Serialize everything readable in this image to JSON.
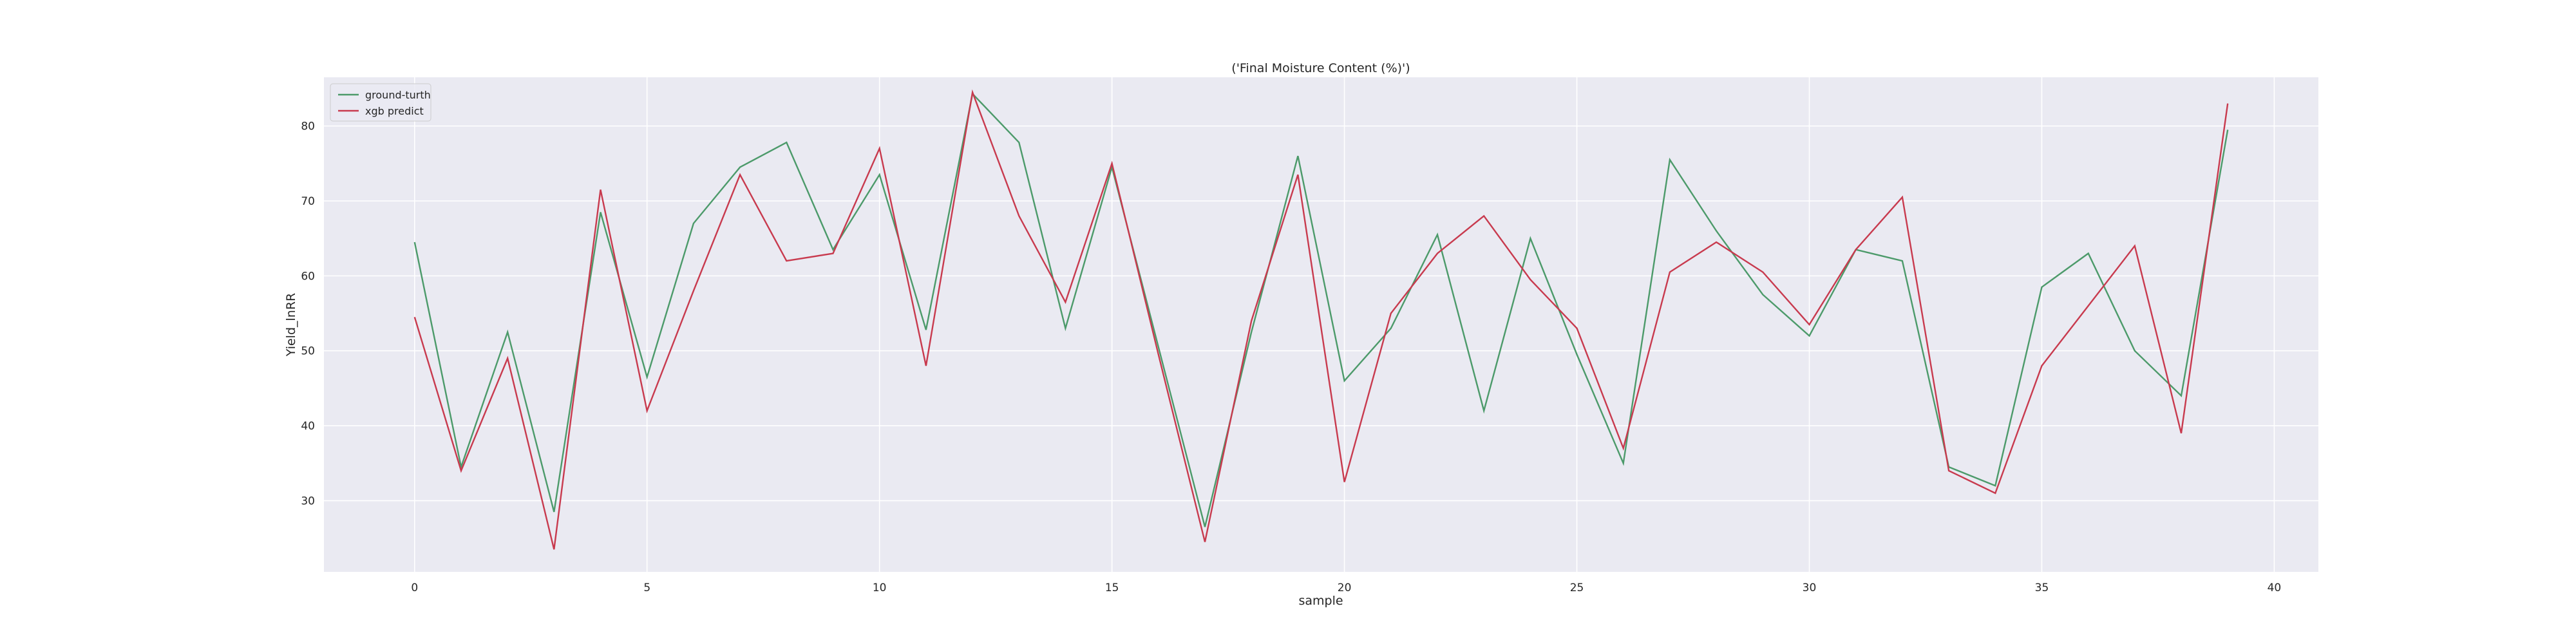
{
  "chart_data": {
    "type": "line",
    "title": "('Final Moisture Content (%)')",
    "xlabel": "sample",
    "ylabel": "Yield_lnRR",
    "xlim": [
      -1.95,
      40.95
    ],
    "ylim": [
      20.5,
      86.5
    ],
    "x_ticks": [
      0,
      5,
      10,
      15,
      20,
      25,
      30,
      35,
      40
    ],
    "y_ticks": [
      30,
      40,
      50,
      60,
      70,
      80
    ],
    "grid": true,
    "legend_position": "top-left",
    "x": [
      0,
      1,
      2,
      3,
      4,
      5,
      6,
      7,
      8,
      9,
      10,
      11,
      12,
      13,
      14,
      15,
      16,
      17,
      18,
      19,
      20,
      21,
      22,
      23,
      24,
      25,
      26,
      27,
      28,
      29,
      30,
      31,
      32,
      33,
      34,
      35,
      36,
      37,
      38,
      39
    ],
    "series": [
      {
        "name": "ground-turth",
        "color": "#4c9a6a",
        "values": [
          64.5,
          34.5,
          52.5,
          28.5,
          68.5,
          46.5,
          67.0,
          74.5,
          77.8,
          63.5,
          73.5,
          52.8,
          84.3,
          77.8,
          53.0,
          74.5,
          50.5,
          26.5,
          52.5,
          76.0,
          46.0,
          53.0,
          65.5,
          42.0,
          65.0,
          49.5,
          35.0,
          75.5,
          66.0,
          57.5,
          52.0,
          63.5,
          62.0,
          34.5,
          32.0,
          58.5,
          63.0,
          50.0,
          44.0,
          79.5
        ]
      },
      {
        "name": "xgb predict",
        "color": "#c83a4e",
        "values": [
          54.5,
          34.0,
          49.0,
          23.5,
          71.5,
          42.0,
          58.0,
          73.5,
          62.0,
          63.0,
          77.0,
          48.0,
          84.5,
          68.0,
          56.5,
          75.0,
          49.5,
          24.5,
          54.0,
          73.5,
          32.5,
          55.0,
          63.0,
          68.0,
          59.5,
          53.0,
          37.0,
          60.5,
          64.5,
          60.5,
          53.5,
          63.5,
          70.5,
          34.0,
          31.0,
          48.0,
          56.0,
          64.0,
          39.0,
          83.0
        ]
      }
    ]
  }
}
